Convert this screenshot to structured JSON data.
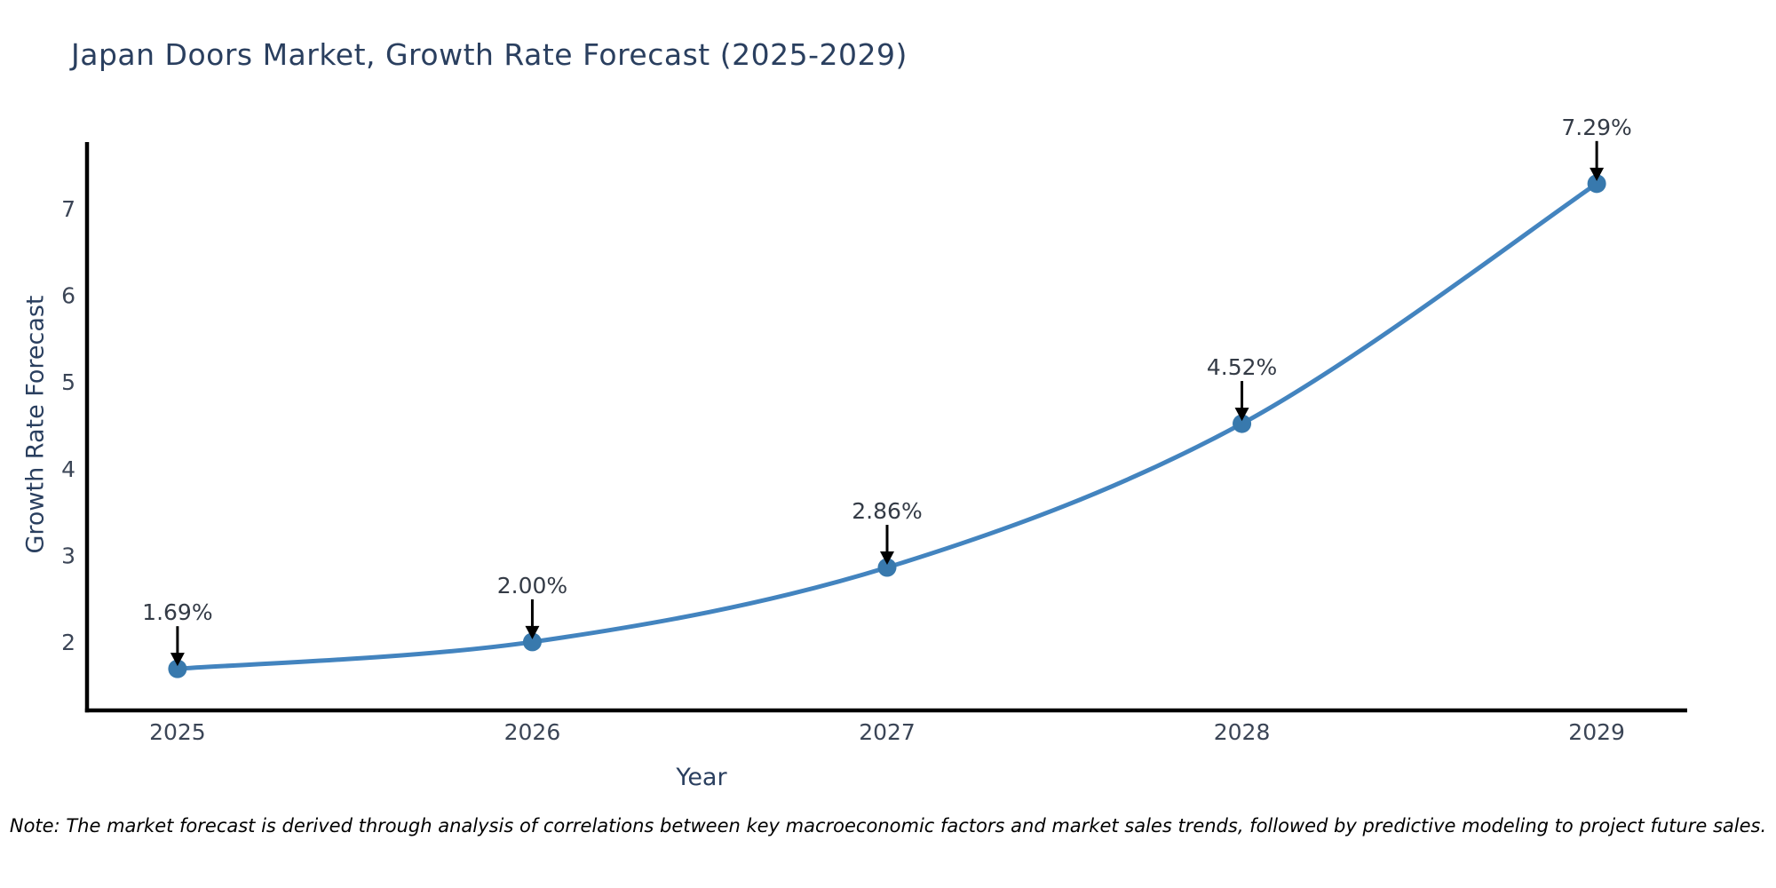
{
  "chart_data": {
    "type": "line",
    "title": "Japan Doors Market, Growth Rate Forecast (2025-2029)",
    "xlabel": "Year",
    "ylabel": "Growth Rate Forecast",
    "x": [
      2025,
      2026,
      2027,
      2028,
      2029
    ],
    "y": [
      1.69,
      2.0,
      2.86,
      4.52,
      7.29
    ],
    "point_labels": [
      "1.69%",
      "2.00%",
      "2.86%",
      "4.52%",
      "7.29%"
    ],
    "x_tick_labels": [
      "2025",
      "2026",
      "2027",
      "2028",
      "2029"
    ],
    "y_tick_values": [
      2,
      3,
      4,
      5,
      6,
      7
    ],
    "xlim": [
      2024.745,
      2029.255
    ],
    "ylim": [
      1.21,
      7.77
    ],
    "grid": false,
    "legend": null,
    "note": "Note: The market forecast is derived through analysis of correlations between key macroeconomic factors and market sales trends, followed by predictive modeling to project future sales."
  },
  "colors": {
    "title": "#2a3f5f",
    "axis_label": "#2a3f5f",
    "tick_label": "#3b4556",
    "annotation": "#343b46",
    "note": "#000000",
    "line": "#4384bf",
    "marker": "#3879ad",
    "arrow": "#000000",
    "axis": "#000000"
  }
}
